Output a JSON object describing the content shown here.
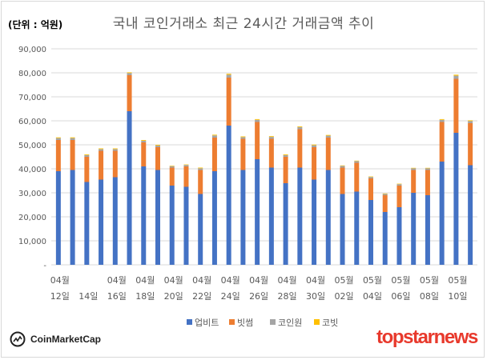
{
  "unit_label": "(단위 : 억원)",
  "title": "국내 코인거래소 최근 24시간 거래금액 추이",
  "brands": {
    "coinmarketcap": "CoinMarketCap",
    "topstarnews": "topstarnews"
  },
  "colors": {
    "upbit": "#4472c4",
    "bithumb": "#ed7d31",
    "coinone": "#a5a5a5",
    "korbit": "#ffc000"
  },
  "chart_data": {
    "type": "bar",
    "stacked": true,
    "yticks": [
      "-",
      "10,000",
      "20,000",
      "30,000",
      "40,000",
      "50,000",
      "60,000",
      "70,000",
      "80,000",
      "90,000"
    ],
    "ylim": [
      0,
      90000
    ],
    "grid": true,
    "legend_position": "bottom",
    "x_labels": [
      {
        "month": "04월",
        "day": "12일"
      },
      {
        "month": "",
        "day": "14일"
      },
      {
        "month": "04월",
        "day": "16일"
      },
      {
        "month": "04월",
        "day": "18일"
      },
      {
        "month": "04월",
        "day": "20일"
      },
      {
        "month": "04월",
        "day": "22일"
      },
      {
        "month": "04월",
        "day": "24일"
      },
      {
        "month": "04월",
        "day": "26일"
      },
      {
        "month": "04월",
        "day": "28일"
      },
      {
        "month": "04월",
        "day": "30일"
      },
      {
        "month": "05월",
        "day": "02일"
      },
      {
        "month": "05월",
        "day": "04일"
      },
      {
        "month": "05월",
        "day": "06일"
      },
      {
        "month": "05월",
        "day": "08일"
      },
      {
        "month": "05월",
        "day": "10일"
      }
    ],
    "x_label_months_row2": [
      "04월"
    ],
    "series": [
      {
        "name": "업비트",
        "values": [
          39000,
          39500,
          34500,
          35500,
          36500,
          64000,
          41000,
          39500,
          33000,
          32500,
          29500,
          39000,
          58000,
          39500,
          44000,
          40500,
          34000,
          40500,
          35500,
          39500,
          29500,
          30500,
          27000,
          22000,
          24000,
          30000,
          29000,
          43000,
          55000,
          41500
        ]
      },
      {
        "name": "빗썸",
        "values": [
          13000,
          12500,
          10500,
          12000,
          11000,
          15000,
          10000,
          9500,
          7500,
          8500,
          10000,
          14000,
          20000,
          13000,
          15500,
          12000,
          11000,
          16000,
          13500,
          13500,
          11000,
          12000,
          9000,
          7000,
          9000,
          9500,
          10500,
          16500,
          22500,
          17500
        ]
      },
      {
        "name": "코인원",
        "values": [
          800,
          800,
          700,
          700,
          700,
          900,
          700,
          700,
          600,
          600,
          700,
          900,
          1200,
          700,
          900,
          800,
          700,
          900,
          800,
          800,
          700,
          700,
          600,
          500,
          600,
          700,
          700,
          900,
          1300,
          900
        ]
      },
      {
        "name": "코빗",
        "values": [
          300,
          300,
          300,
          300,
          300,
          300,
          300,
          300,
          200,
          200,
          300,
          300,
          400,
          300,
          300,
          300,
          300,
          300,
          300,
          300,
          200,
          200,
          200,
          200,
          200,
          200,
          200,
          300,
          400,
          300
        ]
      }
    ]
  }
}
